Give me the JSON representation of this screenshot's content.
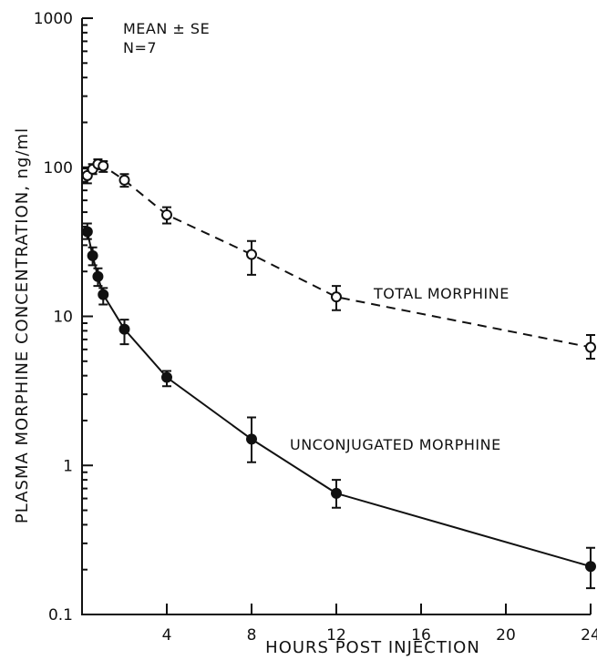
{
  "chart_data": {
    "type": "line",
    "xlabel": "HOURS POST INJECTION",
    "ylabel": "PLASMA MORPHINE CONCENTRATION, ng/ml",
    "yscale": "log",
    "xlim": [
      0,
      24
    ],
    "ylim": [
      0.1,
      1000
    ],
    "grid": false,
    "x_ticks": [
      4,
      8,
      12,
      16,
      20,
      24
    ],
    "x_tick_labels": [
      "4",
      "8",
      "12",
      "16",
      "20",
      "24"
    ],
    "y_ticks": [
      0.1,
      1,
      10,
      100,
      1000
    ],
    "y_tick_labels": [
      "0.1",
      "1",
      "10",
      "100",
      "1000"
    ],
    "annotations": {
      "stats_line1": "MEAN ± SE",
      "stats_line2": "N=7"
    },
    "series": [
      {
        "name": "TOTAL MORPHINE",
        "marker": "open-circle",
        "line_style": "dashed",
        "points": [
          {
            "x": 0.25,
            "y": 88,
            "y_low": 78,
            "y_high": 98
          },
          {
            "x": 0.5,
            "y": 97,
            "y_low": 90,
            "y_high": 105
          },
          {
            "x": 0.75,
            "y": 105,
            "y_low": 97,
            "y_high": 113
          },
          {
            "x": 1,
            "y": 102,
            "y_low": 93,
            "y_high": 110
          },
          {
            "x": 2,
            "y": 82,
            "y_low": 74,
            "y_high": 90
          },
          {
            "x": 4,
            "y": 48,
            "y_low": 42,
            "y_high": 54
          },
          {
            "x": 8,
            "y": 26,
            "y_low": 19,
            "y_high": 32
          },
          {
            "x": 12,
            "y": 13.5,
            "y_low": 11,
            "y_high": 16
          },
          {
            "x": 24,
            "y": 6.2,
            "y_low": 5.2,
            "y_high": 7.5
          }
        ]
      },
      {
        "name": "UNCONJUGATED MORPHINE",
        "marker": "filled-circle",
        "line_style": "solid",
        "points": [
          {
            "x": 0.25,
            "y": 37,
            "y_low": 33,
            "y_high": 42
          },
          {
            "x": 0.5,
            "y": 25.5,
            "y_low": 22,
            "y_high": 29
          },
          {
            "x": 0.75,
            "y": 18.5,
            "y_low": 16,
            "y_high": 21
          },
          {
            "x": 1,
            "y": 14,
            "y_low": 12,
            "y_high": 15.5
          },
          {
            "x": 2,
            "y": 8.2,
            "y_low": 6.5,
            "y_high": 9.5
          },
          {
            "x": 4,
            "y": 3.9,
            "y_low": 3.4,
            "y_high": 4.3
          },
          {
            "x": 8,
            "y": 1.5,
            "y_low": 1.05,
            "y_high": 2.1
          },
          {
            "x": 12,
            "y": 0.65,
            "y_low": 0.52,
            "y_high": 0.8
          },
          {
            "x": 24,
            "y": 0.21,
            "y_low": 0.15,
            "y_high": 0.28
          }
        ]
      }
    ]
  }
}
